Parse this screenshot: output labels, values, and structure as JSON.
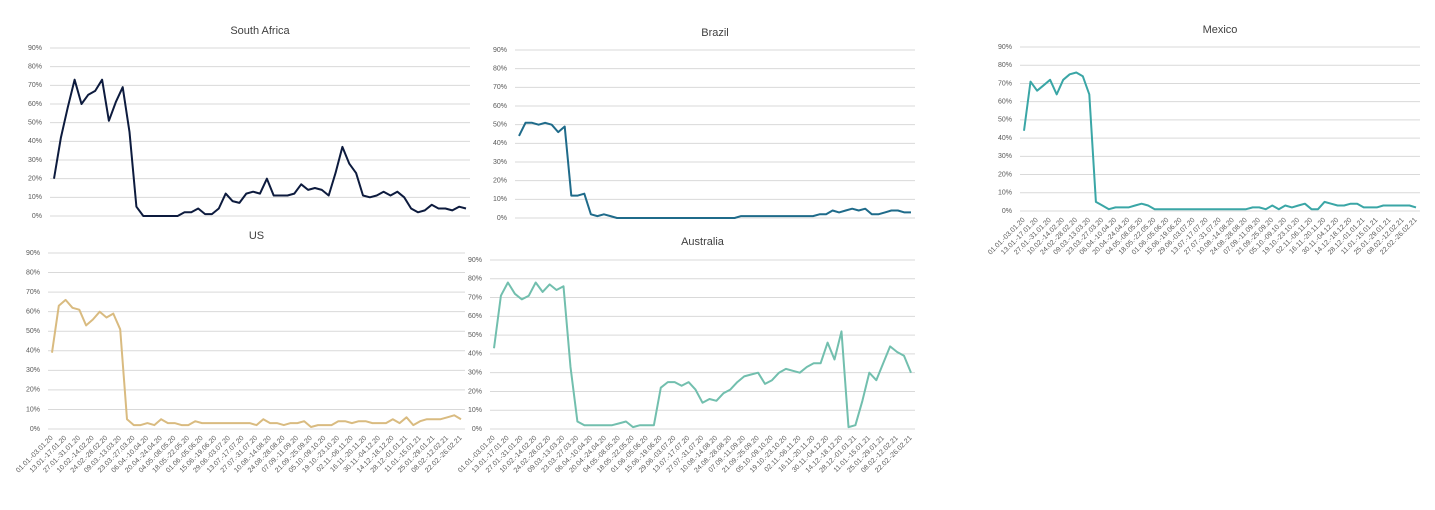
{
  "chart_data": [
    {
      "type": "line",
      "title": "South Africa",
      "color": "#0d1b3e",
      "values": [
        20,
        42,
        58,
        73,
        60,
        65,
        67,
        73,
        51,
        61,
        69,
        45,
        5,
        0,
        0,
        0,
        0,
        0,
        0,
        2,
        2,
        4,
        1,
        1,
        4,
        12,
        8,
        7,
        12,
        13,
        12,
        20,
        11,
        11,
        11,
        12,
        17,
        14,
        15,
        14,
        11,
        23,
        37,
        28,
        23,
        11,
        10,
        11,
        13,
        11,
        13,
        10,
        4,
        2,
        3,
        6,
        4,
        4,
        3,
        5,
        4
      ],
      "ylim": [
        0,
        90
      ],
      "yticks": [
        {
          "value": 0,
          "label": "0%"
        },
        {
          "value": 10,
          "label": "10%"
        },
        {
          "value": 20,
          "label": "20%"
        },
        {
          "value": 30,
          "label": "30%"
        },
        {
          "value": 40,
          "label": "40%"
        },
        {
          "value": 50,
          "label": "50%"
        },
        {
          "value": 60,
          "label": "60%"
        },
        {
          "value": 70,
          "label": "70%"
        },
        {
          "value": 80,
          "label": "80%"
        },
        {
          "value": 90,
          "label": "90%"
        }
      ],
      "grid": true
    },
    {
      "type": "line",
      "title": "Brazil",
      "color": "#1f6b8a",
      "values": [
        44,
        51,
        51,
        50,
        51,
        50,
        46,
        49,
        12,
        12,
        13,
        2,
        1,
        2,
        1,
        0,
        0,
        0,
        0,
        0,
        0,
        0,
        0,
        0,
        0,
        0,
        0,
        0,
        0,
        0,
        0,
        0,
        0,
        0,
        1,
        1,
        1,
        1,
        1,
        1,
        1,
        1,
        1,
        1,
        1,
        1,
        2,
        2,
        4,
        3,
        4,
        5,
        4,
        5,
        2,
        2,
        3,
        4,
        4,
        3,
        3
      ],
      "ylim": [
        0,
        90
      ],
      "yticks": [
        {
          "value": 0,
          "label": "0%"
        },
        {
          "value": 10,
          "label": "10%"
        },
        {
          "value": 20,
          "label": "20%"
        },
        {
          "value": 30,
          "label": "30%"
        },
        {
          "value": 40,
          "label": "40%"
        },
        {
          "value": 50,
          "label": "50%"
        },
        {
          "value": 60,
          "label": "60%"
        },
        {
          "value": 70,
          "label": "70%"
        },
        {
          "value": 80,
          "label": "80%"
        },
        {
          "value": 90,
          "label": "90%"
        }
      ],
      "grid": true
    },
    {
      "type": "line",
      "title": "Mexico",
      "color": "#3aa6a6",
      "categories": [
        "01.01.-03.01.20",
        null,
        "13.01.-17.01.20",
        null,
        "27.01.-31.01.20",
        null,
        "10.02.-14.02.20",
        null,
        "24.02.-28.02.20",
        null,
        "09.03.-13.03.20",
        null,
        "23.03.-27.03.20",
        null,
        "06.04.-10.04.20",
        null,
        "20.04.-24.04.20",
        null,
        "04.05.-08.05.20",
        null,
        "18.05.-22.05.20",
        null,
        "01.06.-05.06.20",
        null,
        "15.06.-19.06.20",
        null,
        "29.06.-03.07.20",
        null,
        "13.07.-17.07.20",
        null,
        "27.07.-31.07.20",
        null,
        "10.08.-14.08.20",
        null,
        "24.08.-28.08.20",
        null,
        "07.09.-11.09.20",
        null,
        "21.09.-25.09.20",
        null,
        "05.10.-09.10.20",
        null,
        "19.10.-23.10.20",
        null,
        "02.11.-06.11.20",
        null,
        "16.11.-20.11.20",
        null,
        "30.11.-04.12.20",
        null,
        "14.12.-18.12.20",
        null,
        "28.12.-01.01.21",
        null,
        "11.01.-15.01.21",
        null,
        "25.01.-29.01.21",
        null,
        "08.02.-12.02.21",
        null,
        "22.02.-26.02.21"
      ],
      "values": [
        44,
        71,
        66,
        69,
        72,
        64,
        72,
        75,
        76,
        74,
        64,
        5,
        3,
        1,
        2,
        2,
        2,
        3,
        4,
        3,
        1,
        1,
        1,
        1,
        1,
        1,
        1,
        1,
        1,
        1,
        1,
        1,
        1,
        1,
        1,
        2,
        2,
        1,
        3,
        1,
        3,
        2,
        3,
        4,
        1,
        1,
        5,
        4,
        3,
        3,
        4,
        4,
        2,
        2,
        2,
        3,
        3,
        3,
        3,
        3,
        2
      ],
      "ylim": [
        0,
        90
      ],
      "yticks": [
        {
          "value": 0,
          "label": "0%"
        },
        {
          "value": 10,
          "label": "10%"
        },
        {
          "value": 20,
          "label": "20%"
        },
        {
          "value": 30,
          "label": "30%"
        },
        {
          "value": 40,
          "label": "40%"
        },
        {
          "value": 50,
          "label": "50%"
        },
        {
          "value": 60,
          "label": "60%"
        },
        {
          "value": 70,
          "label": "70%"
        },
        {
          "value": 80,
          "label": "80%"
        },
        {
          "value": 90,
          "label": "90%"
        }
      ],
      "grid": true
    },
    {
      "type": "line",
      "title": "US",
      "color": "#d9bb80",
      "categories": [
        "01.01.-03.01.20",
        null,
        "13.01.-17.01.20",
        null,
        "27.01.-31.01.20",
        null,
        "10.02.-14.02.20",
        null,
        "24.02.-28.02.20",
        null,
        "09.03.-13.03.20",
        null,
        "23.03.-27.03.20",
        null,
        "06.04.-10.04.20",
        null,
        "20.04.-24.04.20",
        null,
        "04.05.-08.05.20",
        null,
        "18.05.-22.05.20",
        null,
        "01.06.-05.06.20",
        null,
        "15.06.-19.06.20",
        null,
        "29.06.-03.07.20",
        null,
        "13.07.-17.07.20",
        null,
        "27.07.-31.07.20",
        null,
        "10.08.-14.08.20",
        null,
        "24.08.-28.08.20",
        null,
        "07.09.-11.09.20",
        null,
        "21.09.-25.09.20",
        null,
        "05.10.-09.10.20",
        null,
        "19.10.-23.10.20",
        null,
        "02.11.-06.11.20",
        null,
        "16.11.-20.11.20",
        null,
        "30.11.-04.12.20",
        null,
        "14.12.-18.12.20",
        null,
        "28.12.-01.01.21",
        null,
        "11.01.-15.01.21",
        null,
        "25.01.-29.01.21",
        null,
        "08.02.-12.02.21",
        null,
        "22.02.-26.02.21"
      ],
      "values": [
        39,
        63,
        66,
        62,
        61,
        53,
        56,
        60,
        57,
        59,
        51,
        5,
        2,
        2,
        3,
        2,
        5,
        3,
        3,
        2,
        2,
        4,
        3,
        3,
        3,
        3,
        3,
        3,
        3,
        3,
        2,
        5,
        3,
        3,
        2,
        3,
        3,
        4,
        1,
        2,
        2,
        2,
        4,
        4,
        3,
        4,
        4,
        3,
        3,
        3,
        5,
        3,
        6,
        2,
        4,
        5,
        5,
        5,
        6,
        7,
        5
      ],
      "ylim": [
        0,
        90
      ],
      "yticks": [
        {
          "value": 0,
          "label": "0%"
        },
        {
          "value": 10,
          "label": "10%"
        },
        {
          "value": 20,
          "label": "20%"
        },
        {
          "value": 30,
          "label": "30%"
        },
        {
          "value": 40,
          "label": "40%"
        },
        {
          "value": 50,
          "label": "50%"
        },
        {
          "value": 60,
          "label": "60%"
        },
        {
          "value": 70,
          "label": "70%"
        },
        {
          "value": 80,
          "label": "80%"
        },
        {
          "value": 90,
          "label": "90%"
        }
      ],
      "grid": true
    },
    {
      "type": "line",
      "title": "Australia",
      "color": "#72bfae",
      "categories": [
        "01.01.-03.01.20",
        null,
        "13.01.-17.01.20",
        null,
        "27.01.-31.01.20",
        null,
        "10.02.-14.02.20",
        null,
        "24.02.-28.02.20",
        null,
        "09.03.-13.03.20",
        null,
        "23.03.-27.03.20",
        null,
        "06.04.-10.04.20",
        null,
        "20.04.-24.04.20",
        null,
        "04.05.-08.05.20",
        null,
        "18.05.-22.05.20",
        null,
        "01.06.-05.06.20",
        null,
        "15.06.-19.06.20",
        null,
        "29.06.-03.07.20",
        null,
        "13.07.-17.07.20",
        null,
        "27.07.-31.07.20",
        null,
        "10.08.-14.08.20",
        null,
        "24.08.-28.08.20",
        null,
        "07.09.-11.09.20",
        null,
        "21.09.-25.09.20",
        null,
        "05.10.-09.10.20",
        null,
        "19.10.-23.10.20",
        null,
        "02.11.-06.11.20",
        null,
        "16.11.-20.11.20",
        null,
        "30.11.-04.12.20",
        null,
        "14.12.-18.12.20",
        null,
        "28.12.-01.01.21",
        null,
        "11.01.-15.01.21",
        null,
        "25.01.-29.01.21",
        null,
        "08.02.-12.02.21",
        null,
        "22.02.-26.02.21"
      ],
      "values": [
        43,
        71,
        78,
        72,
        69,
        71,
        78,
        73,
        77,
        74,
        76,
        33,
        4,
        2,
        2,
        2,
        2,
        2,
        3,
        4,
        1,
        2,
        2,
        2,
        22,
        25,
        25,
        23,
        25,
        21,
        14,
        16,
        15,
        19,
        21,
        25,
        28,
        29,
        30,
        24,
        26,
        30,
        32,
        31,
        30,
        33,
        35,
        35,
        46,
        37,
        52,
        1,
        2,
        15,
        30,
        26,
        35,
        44,
        41,
        39,
        30
      ],
      "ylim": [
        0,
        90
      ],
      "yticks": [
        {
          "value": 0,
          "label": "0%"
        },
        {
          "value": 10,
          "label": "10%"
        },
        {
          "value": 20,
          "label": "20%"
        },
        {
          "value": 30,
          "label": "30%"
        },
        {
          "value": 40,
          "label": "40%"
        },
        {
          "value": 50,
          "label": "50%"
        },
        {
          "value": 60,
          "label": "60%"
        },
        {
          "value": 70,
          "label": "70%"
        },
        {
          "value": 80,
          "label": "80%"
        },
        {
          "value": 90,
          "label": "90%"
        }
      ],
      "grid": true
    }
  ]
}
